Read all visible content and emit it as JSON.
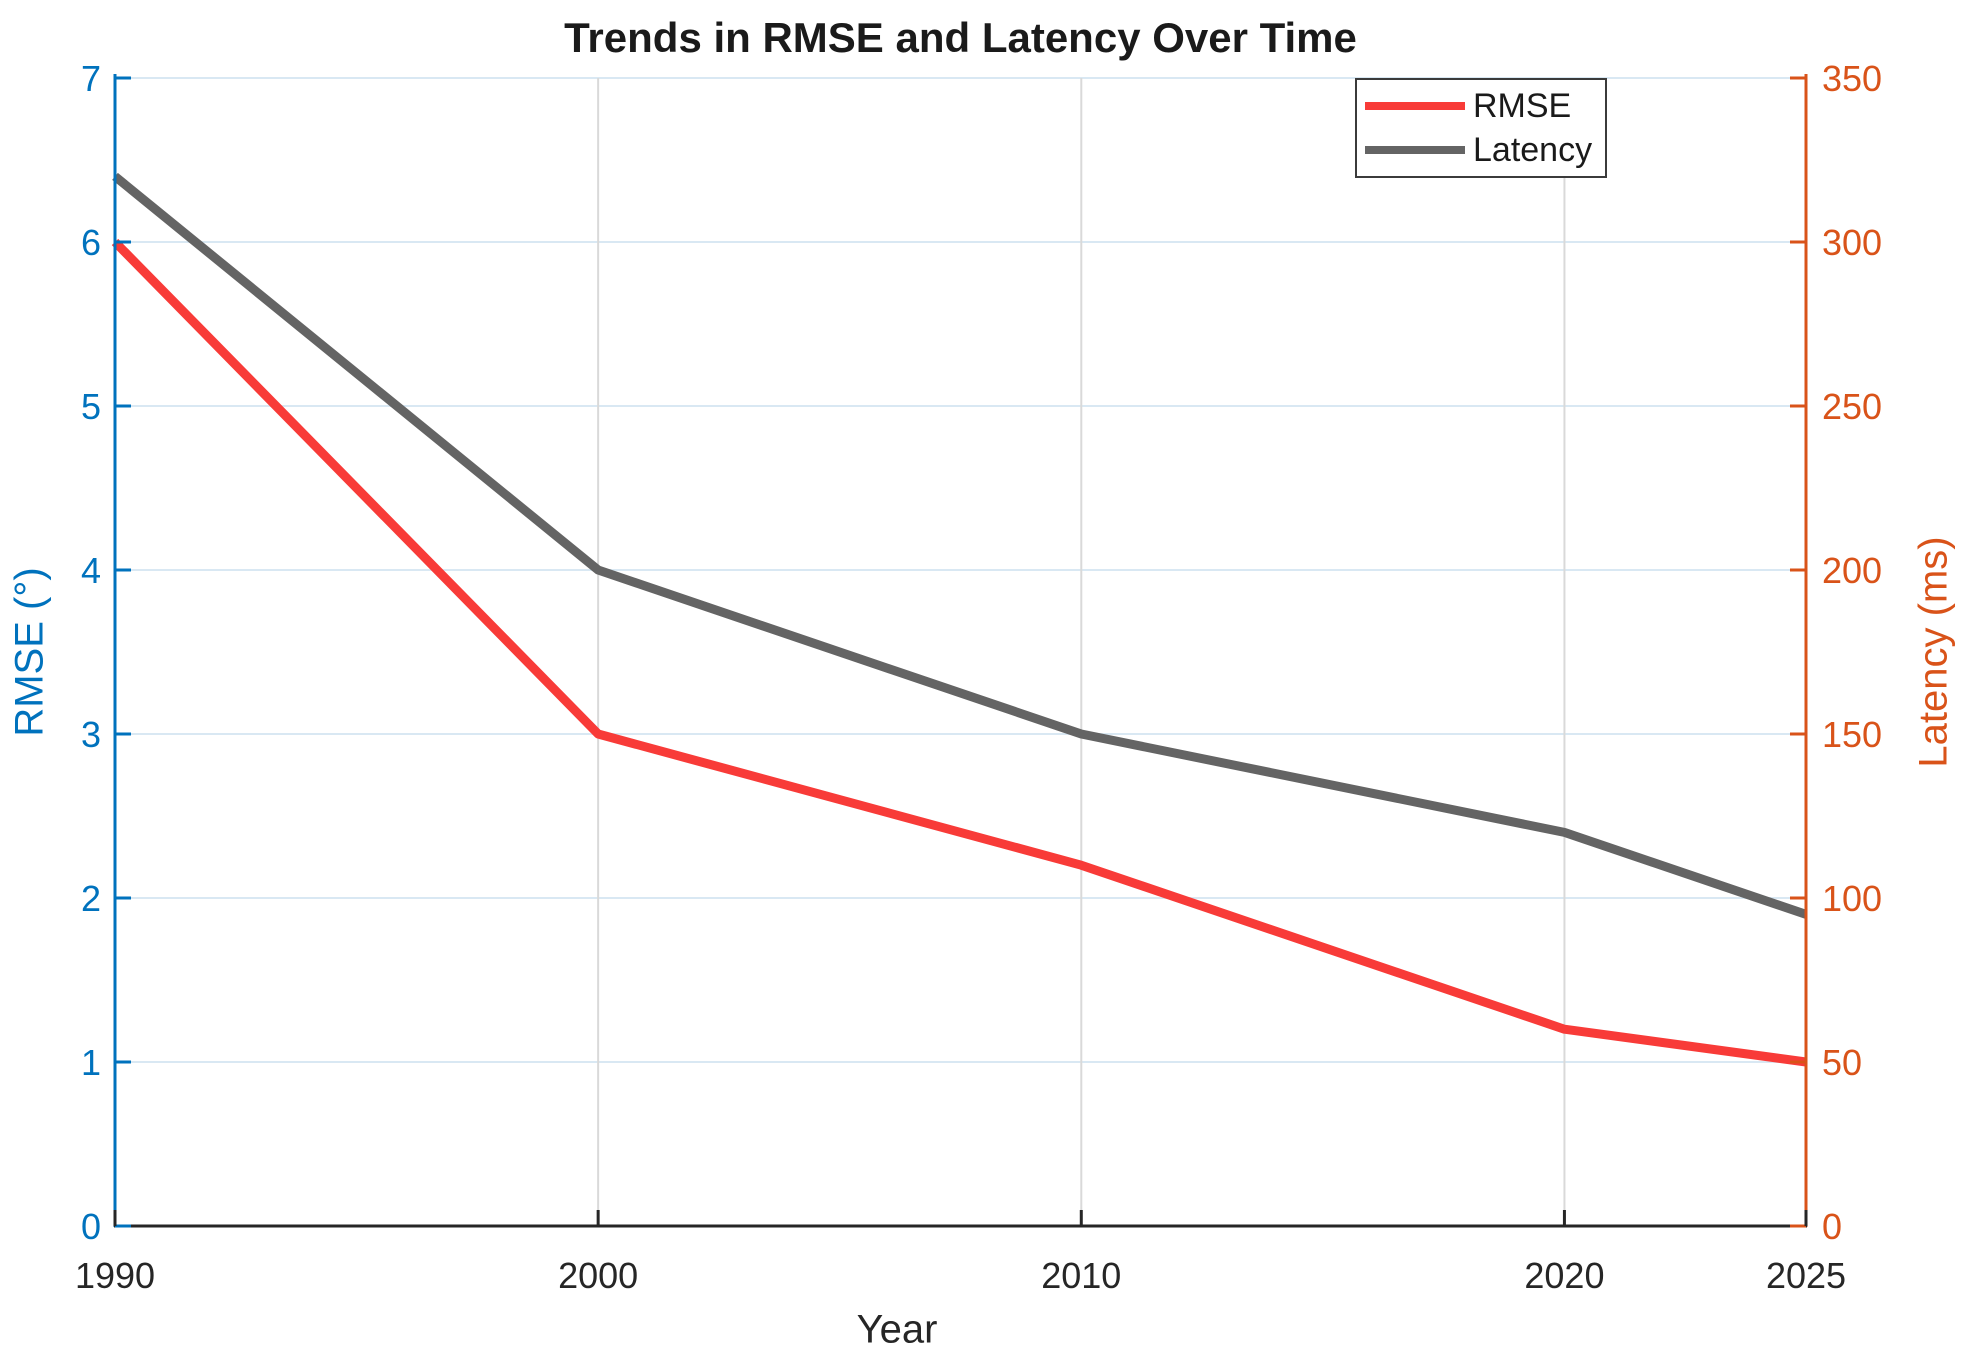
{
  "chart_data": {
    "type": "line",
    "title": "Trends in RMSE and Latency Over Time",
    "xlabel": "Year",
    "ylabel_left": "RMSE (°)",
    "ylabel_right": "Latency (ms)",
    "x": [
      1990,
      2000,
      2010,
      2020,
      2025
    ],
    "x_ticks": [
      1990,
      2000,
      2010,
      2020,
      2025
    ],
    "xlim": [
      1990,
      2025
    ],
    "ylim_left": [
      0,
      7
    ],
    "ylim_right": [
      0,
      350
    ],
    "yticks_left": [
      0,
      1,
      2,
      3,
      4,
      5,
      6,
      7
    ],
    "yticks_right": [
      0,
      50,
      100,
      150,
      200,
      250,
      300,
      350
    ],
    "grid": true,
    "legend_position": "top-right",
    "series": [
      {
        "name": "RMSE",
        "axis": "left",
        "color": "#F83B38",
        "values": [
          6.0,
          3.0,
          2.2,
          1.2,
          1.0
        ]
      },
      {
        "name": "Latency",
        "axis": "right",
        "color": "#646464",
        "values": [
          320,
          200,
          150,
          120,
          95
        ]
      }
    ],
    "colors": {
      "left_axis": "#0072BD",
      "right_axis": "#D95319",
      "x_axis": "#262626",
      "grid_horizontal": "#D9E8F3",
      "grid_vertical": "#D9D9D9",
      "legend_border": "#3B3B3B",
      "title": "#1A1A1A"
    }
  }
}
